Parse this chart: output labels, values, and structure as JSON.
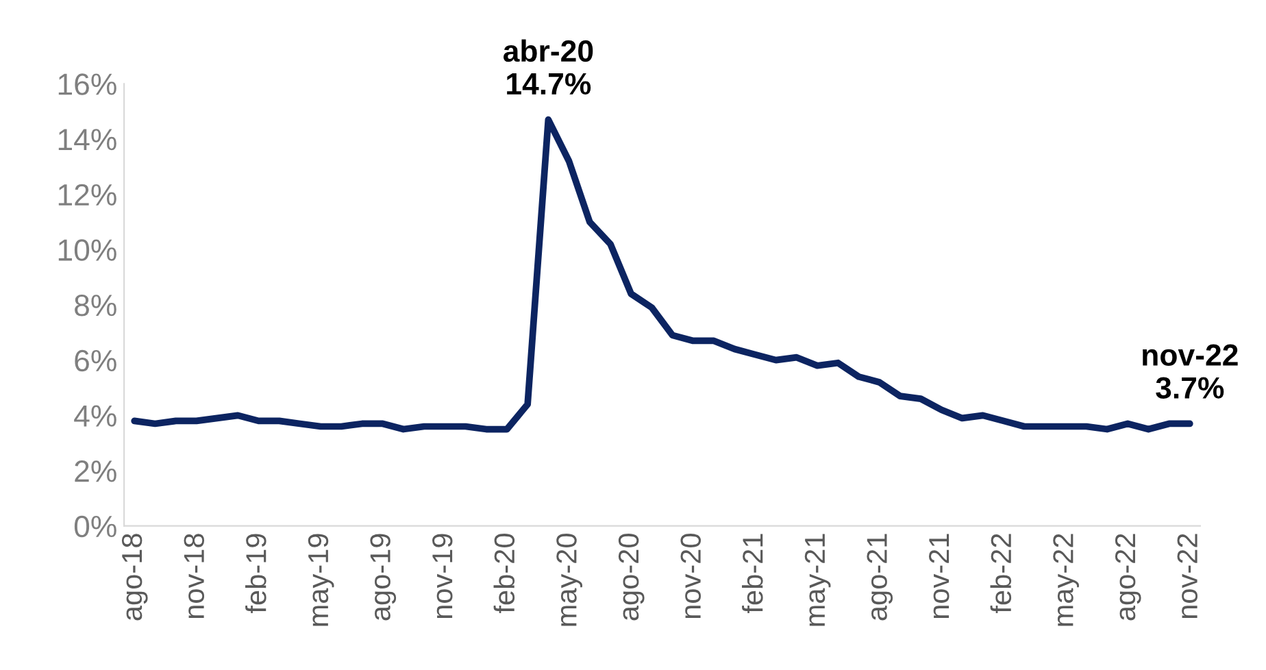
{
  "chart_data": {
    "type": "line",
    "categories": [
      "ago-18",
      null,
      null,
      "nov-18",
      null,
      null,
      "feb-19",
      null,
      null,
      "may-19",
      null,
      null,
      "ago-19",
      null,
      null,
      "nov-19",
      null,
      null,
      "feb-20",
      null,
      null,
      "may-20",
      null,
      null,
      "ago-20",
      null,
      null,
      "nov-20",
      null,
      null,
      "feb-21",
      null,
      null,
      "may-21",
      null,
      null,
      "ago-21",
      null,
      null,
      "nov-21",
      null,
      null,
      "feb-22",
      null,
      null,
      "may-22",
      null,
      null,
      "ago-22",
      null,
      null,
      "nov-22"
    ],
    "series": [
      {
        "color": "#0c2461",
        "values": [
          3.8,
          3.7,
          3.8,
          3.8,
          3.9,
          4.0,
          3.8,
          3.8,
          3.7,
          3.6,
          3.6,
          3.7,
          3.7,
          3.5,
          3.6,
          3.6,
          3.6,
          3.5,
          3.5,
          4.4,
          14.7,
          13.2,
          11.0,
          10.2,
          8.4,
          7.9,
          6.9,
          6.7,
          6.7,
          6.4,
          6.2,
          6.0,
          6.1,
          5.8,
          5.9,
          5.4,
          5.2,
          4.7,
          4.6,
          4.2,
          3.9,
          4.0,
          3.8,
          3.6,
          3.6,
          3.6,
          3.6,
          3.5,
          3.7,
          3.5,
          3.7,
          3.7
        ]
      }
    ],
    "ylim": [
      0,
      16
    ],
    "yticks": [
      {
        "value": 0,
        "label": "0%"
      },
      {
        "value": 2,
        "label": "2%"
      },
      {
        "value": 4,
        "label": "4%"
      },
      {
        "value": 6,
        "label": "6%"
      },
      {
        "value": 8,
        "label": "8%"
      },
      {
        "value": 10,
        "label": "10%"
      },
      {
        "value": 12,
        "label": "12%"
      },
      {
        "value": 14,
        "label": "14%"
      },
      {
        "value": 16,
        "label": "16%"
      }
    ],
    "grid": false,
    "legend": false,
    "marker": "none",
    "line_style": "solid",
    "annotations": [
      {
        "text": "abr-20\n14.7%",
        "y": 14.7
      },
      {
        "text": "nov-22\n3.7%",
        "x": "nov-22",
        "y": 3.7
      }
    ]
  }
}
